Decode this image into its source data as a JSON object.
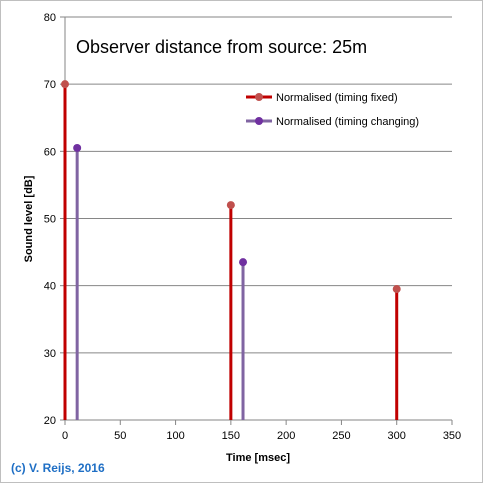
{
  "chart_data": {
    "type": "bar",
    "title": "Observer distance  from source: 25m",
    "xlabel": "Time [msec]",
    "ylabel": "Sound level [dB]",
    "xlim": [
      0,
      350
    ],
    "ylim": [
      20,
      80
    ],
    "xticks": [
      0,
      50,
      100,
      150,
      200,
      250,
      300,
      350
    ],
    "yticks": [
      20,
      30,
      40,
      50,
      60,
      70,
      80
    ],
    "grid": true,
    "legend_position": "top-right",
    "series": [
      {
        "name": "Normalised (timing fixed)",
        "color": "#c00000",
        "marker_color": "#c0504d",
        "points": [
          {
            "x": 0,
            "y": 70
          },
          {
            "x": 150,
            "y": 52
          },
          {
            "x": 300,
            "y": 39.5
          }
        ]
      },
      {
        "name": "Normalised (timing changing)",
        "color": "#8064a2",
        "marker_color": "#7030a0",
        "points": [
          {
            "x": 11,
            "y": 60.5
          },
          {
            "x": 161,
            "y": 43.5
          }
        ]
      }
    ]
  },
  "footer": {
    "copyright": "(c) V. Reijs, 2016",
    "copyright_color": "#1f6fc5"
  }
}
